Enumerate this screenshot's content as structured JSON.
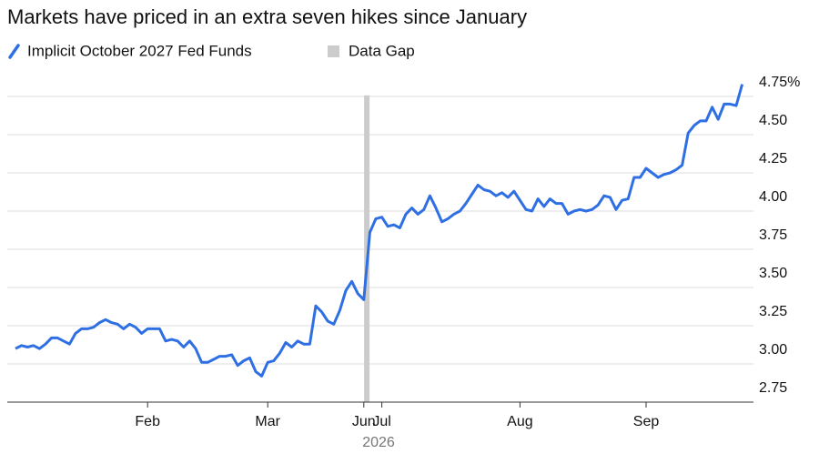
{
  "chart_data": {
    "type": "line",
    "title": "Markets have priced in an extra seven hikes since January",
    "year_label": "2026",
    "categories": [
      null,
      null,
      null,
      null,
      null,
      null,
      null,
      null,
      null,
      null,
      null,
      null,
      null,
      null,
      null,
      null,
      null,
      null,
      null,
      null,
      null,
      null,
      "Feb",
      null,
      null,
      null,
      null,
      null,
      null,
      null,
      null,
      null,
      null,
      null,
      null,
      null,
      null,
      null,
      null,
      null,
      null,
      null,
      "Mar",
      null,
      null,
      null,
      null,
      null,
      null,
      null,
      null,
      null,
      null,
      null,
      null,
      null,
      null,
      null,
      "Jun",
      null,
      null,
      "Jul",
      null,
      null,
      null,
      null,
      null,
      null,
      null,
      null,
      null,
      null,
      null,
      null,
      null,
      null,
      null,
      null,
      null,
      null,
      null,
      null,
      null,
      null,
      "Aug",
      null,
      null,
      null,
      null,
      null,
      null,
      null,
      null,
      null,
      null,
      null,
      null,
      null,
      null,
      null,
      null,
      null,
      null,
      null,
      null,
      "Sep",
      null,
      null,
      null,
      null,
      null,
      null,
      null,
      null,
      null,
      null,
      null,
      null,
      null,
      null,
      null,
      null
    ],
    "series": [
      {
        "name": "Implicit October 2027 Fed Funds",
        "color": "#2f6fe4",
        "values": [
          3.1,
          3.12,
          3.11,
          3.12,
          3.1,
          3.13,
          3.17,
          3.17,
          3.15,
          3.13,
          3.2,
          3.23,
          3.23,
          3.24,
          3.27,
          3.29,
          3.27,
          3.26,
          3.23,
          3.26,
          3.24,
          3.2,
          3.23,
          3.23,
          3.23,
          3.15,
          3.16,
          3.15,
          3.11,
          3.15,
          3.1,
          3.01,
          3.01,
          3.03,
          3.05,
          3.05,
          3.06,
          2.99,
          3.02,
          3.04,
          2.95,
          2.92,
          3.01,
          3.02,
          3.07,
          3.14,
          3.11,
          3.15,
          3.13,
          3.13,
          3.38,
          3.34,
          3.28,
          3.26,
          3.35,
          3.48,
          3.54,
          3.46,
          3.42,
          3.86,
          3.95,
          3.96,
          3.9,
          3.91,
          3.89,
          3.98,
          4.02,
          3.98,
          4.01,
          4.1,
          4.02,
          3.93,
          3.95,
          3.98,
          4.0,
          4.05,
          4.11,
          4.17,
          4.14,
          4.13,
          4.1,
          4.12,
          4.09,
          4.13,
          4.07,
          4.01,
          4.0,
          4.08,
          4.03,
          4.08,
          4.05,
          4.05,
          3.98,
          4.0,
          4.01,
          4.0,
          4.01,
          4.04,
          4.1,
          4.09,
          4.01,
          4.07,
          4.08,
          4.22,
          4.22,
          4.28,
          4.25,
          4.22,
          4.24,
          4.25,
          4.27,
          4.3,
          4.51,
          4.56,
          4.59,
          4.59,
          4.68,
          4.6,
          4.7,
          4.7,
          4.69,
          4.83
        ]
      }
    ],
    "data_gap": {
      "name": "Data Gap",
      "color": "#cccccc",
      "at": 58.5
    },
    "ylim": [
      2.75,
      4.9
    ],
    "yticks": [
      2.75,
      {
        "value": 3,
        "label": "3.00"
      },
      3.25,
      {
        "value": 3.5,
        "label": "3.50"
      },
      3.75,
      {
        "value": 4,
        "label": "4.00"
      },
      4.25,
      {
        "value": 4.5,
        "label": "4.50"
      },
      {
        "value": 4.75,
        "label": "4.75%"
      }
    ],
    "grid": true
  }
}
